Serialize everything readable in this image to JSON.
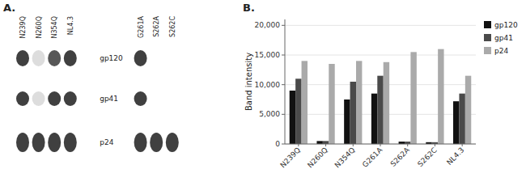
{
  "chart_data": [
    {
      "type": "heatmap",
      "title": "A.",
      "categories": [
        "N239Q",
        "N260Q",
        "N354Q",
        "NL4.3",
        "G261A",
        "S262A",
        "S262C"
      ],
      "series": [
        {
          "name": "gp120",
          "values": [
            0.85,
            0.15,
            0.75,
            0.85,
            0.85,
            0.0,
            0.0
          ]
        },
        {
          "name": "gp41",
          "values": [
            0.85,
            0.15,
            0.85,
            0.85,
            0.85,
            0.0,
            0.0
          ]
        },
        {
          "name": "p24",
          "values": [
            0.85,
            0.85,
            0.85,
            0.85,
            0.85,
            0.85,
            0.85
          ]
        }
      ]
    },
    {
      "type": "bar",
      "title": "B.",
      "y_label": "Band intensity",
      "categories": [
        "N239Q",
        "N260Q",
        "N354Q",
        "G261A",
        "S262A",
        "S262C",
        "NL4.3"
      ],
      "series": [
        {
          "name": "gp120",
          "color": "#111111",
          "values": [
            9000,
            500,
            7500,
            8500,
            400,
            300,
            7200
          ]
        },
        {
          "name": "gp41",
          "color": "#4a4a4a",
          "values": [
            11000,
            500,
            10500,
            11500,
            400,
            300,
            8500
          ]
        },
        {
          "name": "p24",
          "color": "#aaaaaa",
          "values": [
            14000,
            13500,
            14000,
            13800,
            15500,
            16000,
            11500
          ]
        }
      ],
      "ylim": [
        0,
        21000
      ],
      "yticks": [
        0,
        {
          "value": 5000,
          "label": "5,000"
        },
        {
          "value": 10000,
          "label": "10,000"
        },
        {
          "value": 15000,
          "label": "15,000"
        },
        {
          "value": 20000,
          "label": "20,000"
        }
      ],
      "legend": "right"
    }
  ]
}
